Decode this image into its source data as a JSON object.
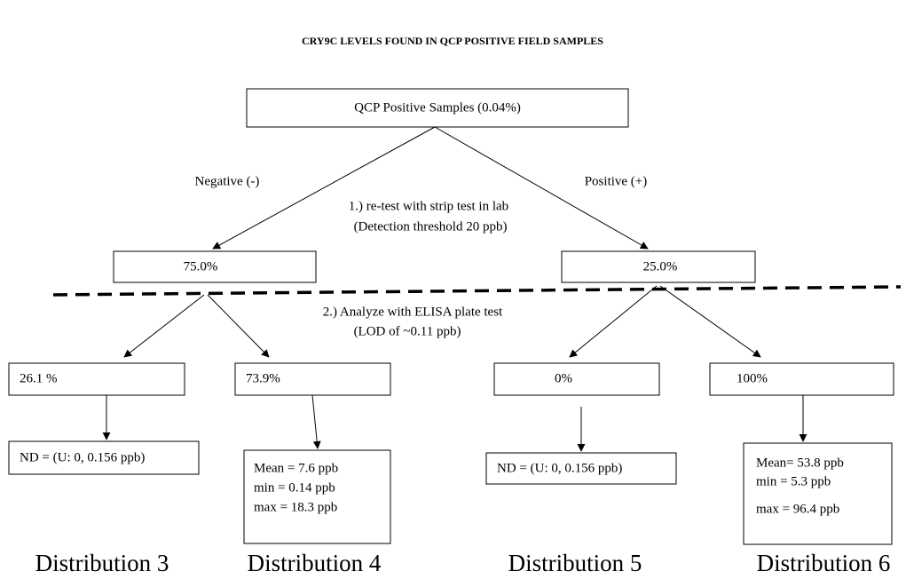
{
  "title": "CRY9C LEVELS FOUND IN QCP POSITIVE FIELD SAMPLES",
  "root": "QCP Positive Samples (0.04%)",
  "branches": {
    "negative": "Negative (-)",
    "positive": "Positive (+)"
  },
  "steps": [
    {
      "lines": [
        "1.) re-test with strip test in lab",
        "(Detection threshold 20 ppb)"
      ]
    },
    {
      "lines": [
        "2.)  Analyze with ELISA plate test",
        "(LOD of ~0.11 ppb)"
      ]
    }
  ],
  "level1": [
    "75.0%",
    "25.0%"
  ],
  "level2": [
    "26.1 %",
    "73.9%",
    "0%",
    "100%"
  ],
  "results": [
    {
      "lines": [
        "ND = (U: 0, 0.156 ppb)"
      ]
    },
    {
      "lines": [
        "Mean = 7.6 ppb",
        "min = 0.14 ppb",
        "max = 18.3 ppb"
      ]
    },
    {
      "lines": [
        "ND =  (U: 0, 0.156 ppb)"
      ]
    },
    {
      "lines": [
        "Mean= 53.8 ppb",
        "min = 5.3 ppb",
        "max = 96.4 ppb"
      ]
    }
  ],
  "distributions": [
    "Distribution 3",
    "Distribution 4",
    "Distribution 5",
    "Distribution 6"
  ]
}
